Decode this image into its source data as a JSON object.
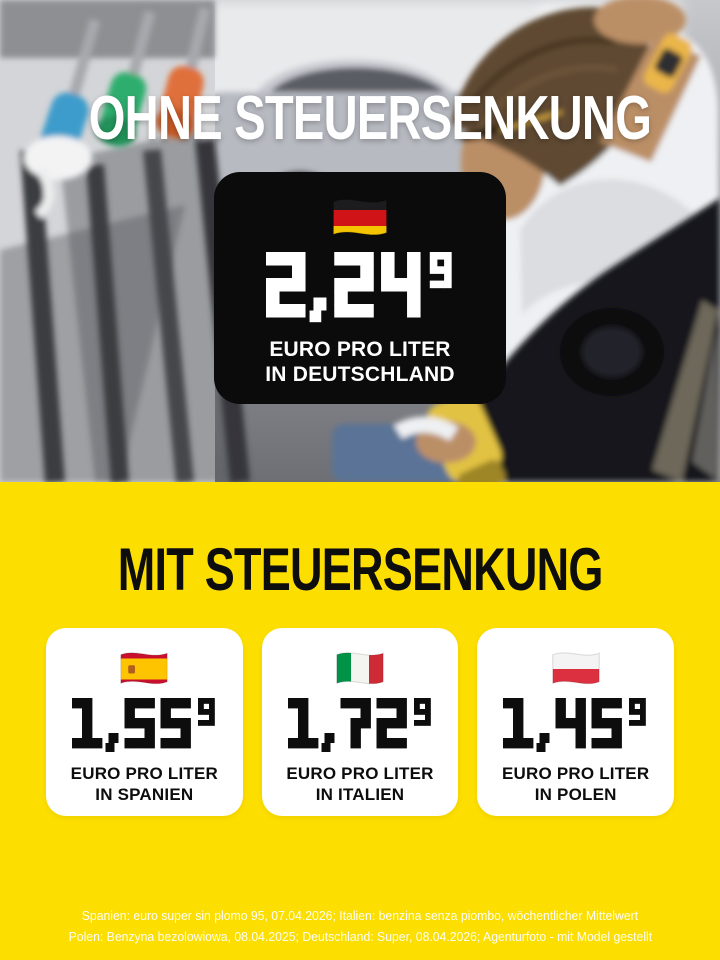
{
  "top": {
    "headline": "OHNE STEUERSENKUNG",
    "card": {
      "flag": "germany",
      "price": "2,24",
      "price_sup": "9",
      "label_line1": "EURO PRO LITER",
      "label_line2": "IN DEUTSCHLAND"
    }
  },
  "bottom": {
    "headline": "MIT STEUERSENKUNG",
    "cards": [
      {
        "flag": "spain",
        "price": "1,55",
        "price_sup": "9",
        "label_line1": "EURO PRO LITER",
        "label_line2": "IN SPANIEN"
      },
      {
        "flag": "italy",
        "price": "1,72",
        "price_sup": "9",
        "label_line1": "EURO PRO LITER",
        "label_line2": "IN ITALIEN"
      },
      {
        "flag": "poland",
        "price": "1,45",
        "price_sup": "9",
        "label_line1": "EURO PRO LITER",
        "label_line2": "IN POLEN"
      }
    ],
    "disclaimer_line1": "Spanien: euro super sin plomo 95, 07.04.2026; Italien: benzina senza piombo, wöchentlicher Mittelwert",
    "disclaimer_line2": "Polen: Benzyna bezolowiowa, 08.04.2025; Deutschland: Super, 08.04.2026; Agenturfoto - mit Model gestellt"
  },
  "flags": {
    "germany": {
      "orientation": "h",
      "colors": [
        "#1c1c1e",
        "#d01317",
        "#f5c400"
      ],
      "ratios": [
        1,
        1,
        1
      ]
    },
    "spain": {
      "orientation": "h",
      "colors": [
        "#c8102e",
        "#ffc400",
        "#c8102e"
      ],
      "ratios": [
        1,
        2,
        1
      ],
      "emblem": true
    },
    "italy": {
      "orientation": "v",
      "colors": [
        "#009246",
        "#f4f5f0",
        "#ce2b37"
      ],
      "ratios": [
        1,
        1,
        1
      ]
    },
    "poland": {
      "orientation": "h",
      "colors": [
        "#f4f4f5",
        "#dc3040"
      ],
      "ratios": [
        1,
        1
      ]
    }
  },
  "colors": {
    "background_yellow": "#fcde00",
    "card_black": "#0b0b0b",
    "card_white": "#ffffff",
    "headline_top_white": "#ffffff",
    "headline_bottom_black": "#0d0d0d",
    "price_white": "#ffffff",
    "price_black": "#0d0d0d"
  }
}
